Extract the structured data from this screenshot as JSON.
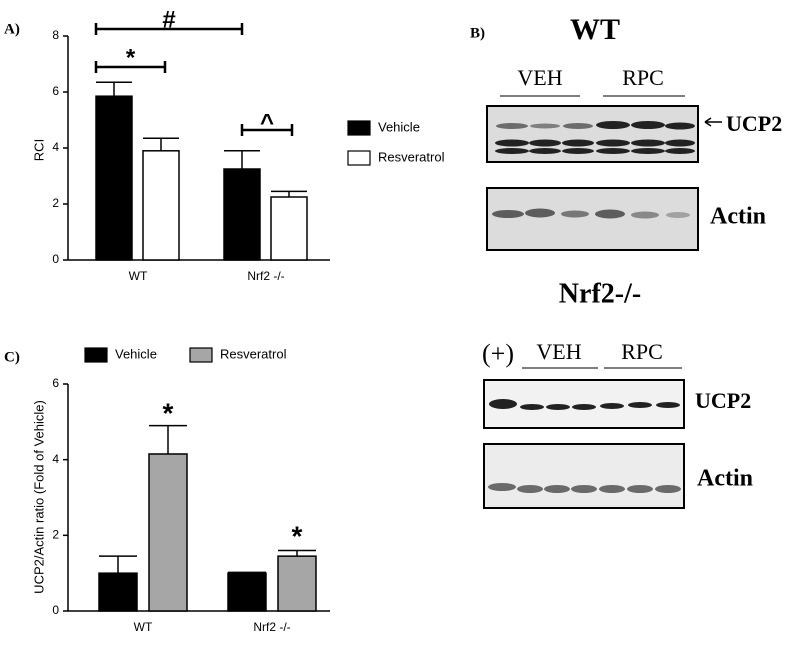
{
  "panel_labels": [
    "A)",
    "B)",
    "C)"
  ],
  "chart_data": [
    {
      "type": "bar",
      "ylabel": "RCI",
      "categories": [
        "WT",
        "Nrf2 -/-"
      ],
      "series": [
        {
          "name": "Vehicle",
          "color": "#000000",
          "values": [
            5.85,
            3.25
          ],
          "errors": [
            0.5,
            0.65
          ]
        },
        {
          "name": "Resveratrol",
          "color": "#ffffff",
          "values": [
            3.9,
            2.25
          ],
          "errors": [
            0.45,
            0.2
          ]
        }
      ],
      "ylim": [
        0,
        8
      ],
      "yticks": [
        0,
        2,
        4,
        6,
        8
      ],
      "annotations": [
        "*",
        "#",
        "^"
      ]
    },
    {
      "type": "bar",
      "ylabel": "UCP2/Actin ratio (Fold of Vehicle)",
      "categories": [
        "WT",
        "Nrf2 -/-"
      ],
      "series": [
        {
          "name": "Vehicle",
          "color": "#000000",
          "values": [
            1.0,
            1.0
          ],
          "errors": [
            0.45,
            0.02
          ]
        },
        {
          "name": "Resveratrol",
          "color": "#a6a6a6",
          "values": [
            4.15,
            1.45
          ],
          "errors": [
            0.75,
            0.15
          ]
        }
      ],
      "ylim": [
        0,
        6
      ],
      "yticks": [
        0,
        2,
        4,
        6
      ],
      "annotations": [
        "*",
        "*"
      ]
    }
  ],
  "blots": {
    "wt": {
      "title": "WT",
      "groups": [
        "VEH",
        "RPC"
      ],
      "bands": [
        "UCP2",
        "Actin"
      ]
    },
    "nrf2": {
      "title": "Nrf2-/-",
      "control": "(+)",
      "groups": [
        "VEH",
        "RPC"
      ],
      "bands": [
        "UCP2",
        "Actin"
      ]
    }
  }
}
